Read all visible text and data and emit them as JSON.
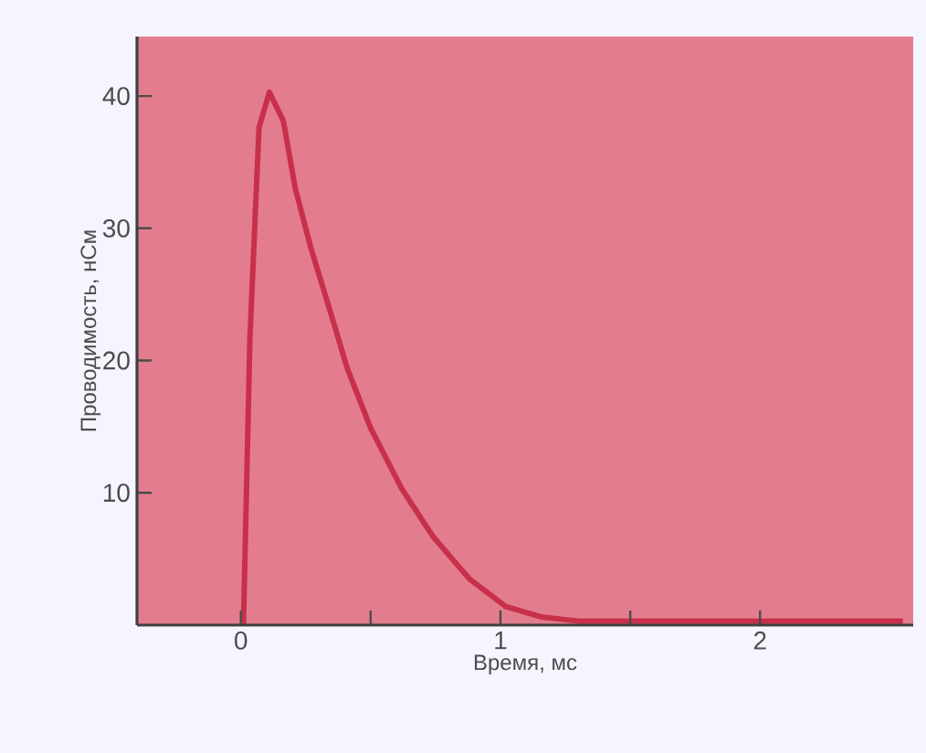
{
  "chart_data": {
    "type": "line",
    "xlabel": "Время, мс",
    "ylabel": "Проводимость, нСм",
    "x": [
      0.01,
      0.035,
      0.07,
      0.11,
      0.164,
      0.21,
      0.27,
      0.34,
      0.41,
      0.5,
      0.62,
      0.74,
      0.88,
      1.02,
      1.16,
      1.3,
      1.6,
      2.0,
      2.3,
      2.55
    ],
    "values": [
      0,
      21.7,
      37.6,
      40.3,
      38.1,
      33,
      28.5,
      24,
      19.4,
      14.9,
      10.3,
      6.7,
      3.5,
      1.4,
      0.6,
      0.3,
      0.3,
      0.3,
      0.3,
      0.3
    ],
    "color": "#c8304a",
    "xlim": [
      -0.4,
      2.59
    ],
    "ylim": [
      0,
      44.5
    ],
    "xticks": [
      0,
      {
        "value": 0.5,
        "label": null
      },
      1,
      {
        "value": 1.5,
        "label": null
      },
      2
    ],
    "yticks": [
      10,
      20,
      30,
      40
    ],
    "marker": "none",
    "line_style": "solid"
  }
}
